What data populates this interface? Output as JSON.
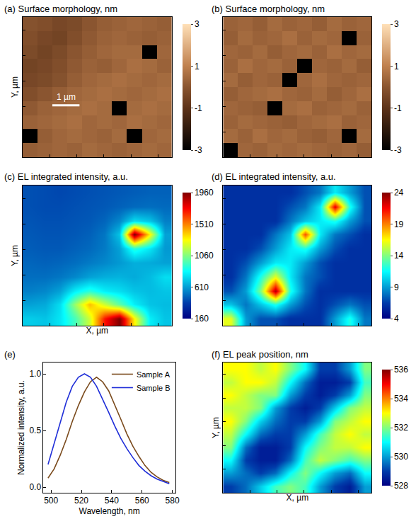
{
  "chart_data": [
    {
      "type": "heatmap",
      "title": "(a) Surface morphology, nm",
      "ylabel": "Y, µm",
      "color": "copper",
      "x": [
        0.275,
        0.825,
        1.375,
        1.925,
        2.475,
        3.025,
        3.575,
        4.125,
        4.675,
        5.225
      ],
      "y": [
        0.275,
        0.825,
        1.375,
        1.925,
        2.475,
        3.025,
        3.575,
        4.125,
        4.675,
        5.225
      ],
      "z": [
        [
          0.2,
          0.3,
          0.4,
          0.3,
          0.5,
          0.4,
          0.3,
          0.4,
          0.5,
          0.4
        ],
        [
          -3,
          0.2,
          0.4,
          0.5,
          0.4,
          0.3,
          0.5,
          -3,
          0.4,
          0.5
        ],
        [
          0.3,
          0.4,
          0.5,
          0.6,
          0.4,
          0.5,
          0.4,
          0.6,
          0.5,
          0.4
        ],
        [
          0.1,
          0.3,
          0.4,
          0.5,
          0.6,
          0.5,
          -3,
          0.5,
          0.6,
          0.5
        ],
        [
          -0.2,
          0.0,
          0.2,
          0.4,
          0.5,
          0.6,
          0.5,
          0.4,
          0.5,
          0.6
        ],
        [
          -0.4,
          -0.3,
          -0.1,
          0.2,
          0.4,
          0.5,
          0.6,
          0.5,
          0.4,
          0.5
        ],
        [
          -0.5,
          -0.4,
          -0.2,
          0.1,
          0.3,
          0.2,
          0.4,
          0.6,
          0.5,
          0.3
        ],
        [
          -0.3,
          -0.5,
          -0.3,
          0.0,
          0.2,
          0.4,
          0.5,
          0.5,
          -3,
          0.4
        ],
        [
          -0.2,
          -0.4,
          -0.5,
          -0.2,
          0.1,
          0.3,
          0.4,
          0.3,
          0.2,
          0.3
        ],
        [
          -0.1,
          -0.2,
          -0.4,
          -0.3,
          0.0,
          0.2,
          0.3,
          0.4,
          0.3,
          0.2
        ]
      ],
      "xlim": [
        0,
        5.5
      ],
      "ylim": [
        0,
        5.5
      ],
      "xticks": [
        0,
        1,
        2,
        3,
        4,
        5
      ],
      "yticks": [
        0,
        1,
        2,
        3,
        4,
        5
      ],
      "tick_labels": false,
      "colorbar": {
        "range": [
          -3,
          3
        ],
        "ticks": [
          -3,
          -1,
          1,
          3
        ]
      },
      "scale_bar": {
        "length": 1,
        "label": "1 µm"
      }
    },
    {
      "type": "heatmap",
      "title": "(b) Surface morphology, nm",
      "color": "copper",
      "x": [
        0.275,
        0.825,
        1.375,
        1.925,
        2.475,
        3.025,
        3.575,
        4.125,
        4.675,
        5.225
      ],
      "y": [
        0.275,
        0.825,
        1.375,
        1.925,
        2.475,
        3.025,
        3.575,
        4.125,
        4.675,
        5.225
      ],
      "z": [
        [
          -3,
          0.4,
          0.3,
          0.5,
          0.4,
          0.5,
          0.4,
          0.3,
          0.4,
          0.2
        ],
        [
          0.5,
          0.3,
          0.6,
          0.4,
          0.5,
          0.3,
          0.2,
          0.4,
          -3,
          0.5
        ],
        [
          0.3,
          0.5,
          0.4,
          0.3,
          0.2,
          0.4,
          0.5,
          0.6,
          0.3,
          0.4
        ],
        [
          0.4,
          0.3,
          0.2,
          -3,
          0.5,
          0.6,
          0.3,
          0.4,
          0.5,
          0.3
        ],
        [
          0.2,
          0.4,
          0.5,
          0.6,
          0.4,
          0.3,
          0.5,
          0.2,
          0.4,
          0.6
        ],
        [
          0.5,
          0.2,
          0.4,
          0.3,
          -3,
          0.4,
          0.6,
          0.4,
          0.3,
          0.4
        ],
        [
          0.3,
          0.6,
          0.4,
          0.5,
          0.3,
          -3,
          0.4,
          0.3,
          0.5,
          0.2
        ],
        [
          0.4,
          0.3,
          0.5,
          0.2,
          0.4,
          0.5,
          0.3,
          0.6,
          0.4,
          0.5
        ],
        [
          0.2,
          0.5,
          0.3,
          0.4,
          0.6,
          0.3,
          0.5,
          0.4,
          -3,
          0.3
        ],
        [
          0.3,
          0.4,
          0.2,
          0.5,
          0.3,
          0.4,
          0.2,
          0.5,
          0.3,
          0.4
        ]
      ],
      "xlim": [
        0,
        5.5
      ],
      "ylim": [
        0,
        5.5
      ],
      "xticks": [
        0,
        1,
        2,
        3,
        4,
        5
      ],
      "yticks": [
        0,
        1,
        2,
        3,
        4,
        5
      ],
      "tick_labels": false,
      "colorbar": {
        "range": [
          -3,
          3
        ],
        "ticks": [
          -3,
          -1,
          1,
          3
        ]
      }
    },
    {
      "type": "heatmap",
      "title": "(c) EL integrated intensity, a.u.",
      "xlabel": "X, µm",
      "ylabel": "Y, µm",
      "color": "Jet",
      "x": [
        0.275,
        0.825,
        1.375,
        1.925,
        2.475,
        3.025,
        3.575,
        4.125,
        4.675,
        5.225
      ],
      "y": [
        0.275,
        0.825,
        1.375,
        1.925,
        2.475,
        3.025,
        3.575,
        4.125,
        4.675,
        5.225
      ],
      "z": [
        [
          720,
          700,
          780,
          950,
          1200,
          1700,
          1960,
          1300,
          800,
          700
        ],
        [
          620,
          640,
          760,
          1100,
          1400,
          1200,
          1000,
          800,
          700,
          680
        ],
        [
          540,
          560,
          620,
          800,
          900,
          800,
          760,
          700,
          680,
          700
        ],
        [
          500,
          500,
          520,
          560,
          620,
          650,
          660,
          640,
          680,
          760
        ],
        [
          480,
          470,
          480,
          500,
          530,
          560,
          600,
          650,
          640,
          620
        ],
        [
          460,
          450,
          450,
          470,
          490,
          530,
          620,
          900,
          780,
          600
        ],
        [
          450,
          440,
          440,
          450,
          470,
          520,
          700,
          1960,
          1300,
          620
        ],
        [
          440,
          430,
          430,
          440,
          450,
          480,
          560,
          760,
          700,
          540
        ],
        [
          430,
          420,
          420,
          430,
          440,
          450,
          470,
          490,
          500,
          490
        ],
        [
          430,
          420,
          410,
          420,
          430,
          440,
          450,
          460,
          470,
          470
        ]
      ],
      "xlim": [
        0,
        5.5
      ],
      "ylim": [
        0,
        5.5
      ],
      "xticks": [
        0,
        1,
        2,
        3,
        4,
        5
      ],
      "yticks": [
        0,
        1,
        2,
        3,
        4,
        5
      ],
      "tick_labels": false,
      "colorbar": {
        "range": [
          160,
          1960
        ],
        "ticks": [
          160,
          610,
          1060,
          1510,
          1960
        ]
      }
    },
    {
      "type": "heatmap",
      "title": "(d) EL integrated intensity, a.u.",
      "color": "Jet",
      "x": [
        0.275,
        0.825,
        1.375,
        1.925,
        2.475,
        3.025,
        3.575,
        4.125,
        4.675,
        5.225
      ],
      "y": [
        0.275,
        0.825,
        1.375,
        1.925,
        2.475,
        3.025,
        3.575,
        4.125,
        4.675,
        5.225
      ],
      "z": [
        [
          16,
          9,
          7,
          7,
          6,
          6,
          6,
          9,
          12,
          8
        ],
        [
          10,
          8,
          10,
          12,
          9,
          7,
          6,
          7,
          8,
          7
        ],
        [
          7,
          9,
          14,
          23,
          12,
          8,
          6,
          6,
          6,
          6
        ],
        [
          6,
          8,
          12,
          16,
          11,
          8,
          7,
          6,
          6,
          6
        ],
        [
          6,
          7,
          9,
          11,
          11,
          9,
          7,
          6,
          6,
          6
        ],
        [
          6,
          6,
          7,
          9,
          11,
          12,
          9,
          7,
          6,
          6
        ],
        [
          6,
          6,
          6,
          8,
          10,
          20,
          11,
          8,
          7,
          6
        ],
        [
          6,
          6,
          6,
          6,
          8,
          10,
          11,
          12,
          9,
          7
        ],
        [
          6,
          6,
          6,
          6,
          7,
          8,
          11,
          22,
          12,
          7
        ],
        [
          6,
          6,
          6,
          6,
          6,
          7,
          8,
          11,
          9,
          7
        ]
      ],
      "xlim": [
        0,
        5.5
      ],
      "ylim": [
        0,
        5.5
      ],
      "xticks": [
        0,
        1,
        2,
        3,
        4,
        5
      ],
      "yticks": [
        0,
        1,
        2,
        3,
        4,
        5
      ],
      "tick_labels": false,
      "colorbar": {
        "range": [
          4,
          24
        ],
        "ticks": [
          4,
          9,
          14,
          19,
          24
        ]
      }
    },
    {
      "type": "line",
      "title": "(e)",
      "xlabel": "Wavelength, nm",
      "ylabel": "Normalized intensity, a.u.",
      "x": [
        498,
        502,
        506,
        510,
        514,
        518,
        522,
        526,
        530,
        534,
        538,
        542,
        546,
        550,
        554,
        558,
        562,
        566,
        570,
        574,
        578
      ],
      "series": [
        {
          "name": "Sample A",
          "color": "#7a4a1c",
          "values": [
            0.08,
            0.16,
            0.28,
            0.42,
            0.58,
            0.72,
            0.84,
            0.93,
            0.97,
            0.93,
            0.85,
            0.73,
            0.6,
            0.47,
            0.36,
            0.27,
            0.19,
            0.13,
            0.09,
            0.06,
            0.04
          ]
        },
        {
          "name": "Sample B",
          "color": "#1f2ed8",
          "values": [
            0.2,
            0.38,
            0.57,
            0.75,
            0.89,
            0.97,
            1.0,
            0.97,
            0.89,
            0.78,
            0.66,
            0.54,
            0.43,
            0.34,
            0.26,
            0.19,
            0.14,
            0.1,
            0.07,
            0.05,
            0.03
          ]
        }
      ],
      "xlim": [
        495,
        582
      ],
      "ylim": [
        -0.05,
        1.1
      ],
      "xticks": [
        500,
        520,
        540,
        560,
        580
      ],
      "yticks": [
        {
          "value": 0,
          "label": "0.0"
        },
        {
          "value": 0.5,
          "label": "0.5"
        },
        {
          "value": 1,
          "label": "1.0"
        }
      ],
      "legend": "top-right"
    },
    {
      "type": "heatmap",
      "title": "(f) EL peak position, nm",
      "xlabel": "X, µm",
      "ylabel": "Y, µm",
      "color": "Jet",
      "x": [
        0.275,
        0.825,
        1.375,
        1.925,
        2.475,
        3.025,
        3.575,
        4.125,
        4.675,
        5.225
      ],
      "y": [
        0.275,
        0.825,
        1.375,
        1.925,
        2.475,
        3.025,
        3.575,
        4.125,
        4.675,
        5.225
      ],
      "z": [
        [
          529,
          529.5,
          530.5,
          531.5,
          532,
          531.5,
          530,
          529,
          528.5,
          530
        ],
        [
          530,
          529.5,
          529,
          529.5,
          531,
          532,
          531,
          530,
          529.5,
          531
        ],
        [
          531,
          529,
          528.5,
          528.5,
          529.5,
          531.5,
          532.5,
          532,
          531.5,
          532
        ],
        [
          532,
          529.5,
          528.5,
          528.5,
          529,
          531,
          532,
          532.5,
          532.5,
          533
        ],
        [
          532.5,
          531,
          529.5,
          529,
          529,
          530,
          531.5,
          532.5,
          533,
          532.5
        ],
        [
          533,
          532,
          530.5,
          529.5,
          529,
          529,
          530,
          532,
          532.5,
          533
        ],
        [
          532.5,
          532.5,
          532,
          530,
          529,
          528.5,
          529,
          530.5,
          532,
          532.5
        ],
        [
          533,
          532.5,
          532,
          532,
          530,
          529,
          528.5,
          529,
          530,
          532
        ],
        [
          532.5,
          533,
          533,
          532.5,
          531,
          529.5,
          528.5,
          528.5,
          529,
          531.5
        ],
        [
          533,
          533,
          532.5,
          533,
          532,
          531,
          529,
          529,
          530,
          532
        ]
      ],
      "xlim": [
        0,
        5.5
      ],
      "ylim": [
        0,
        5.5
      ],
      "xticks": [
        0,
        1,
        2,
        3,
        4,
        5
      ],
      "yticks": [
        0,
        1,
        2,
        3,
        4,
        5
      ],
      "tick_labels": false,
      "colorbar": {
        "range": [
          528,
          536
        ],
        "ticks": [
          528,
          530,
          532,
          534,
          536
        ]
      }
    }
  ]
}
